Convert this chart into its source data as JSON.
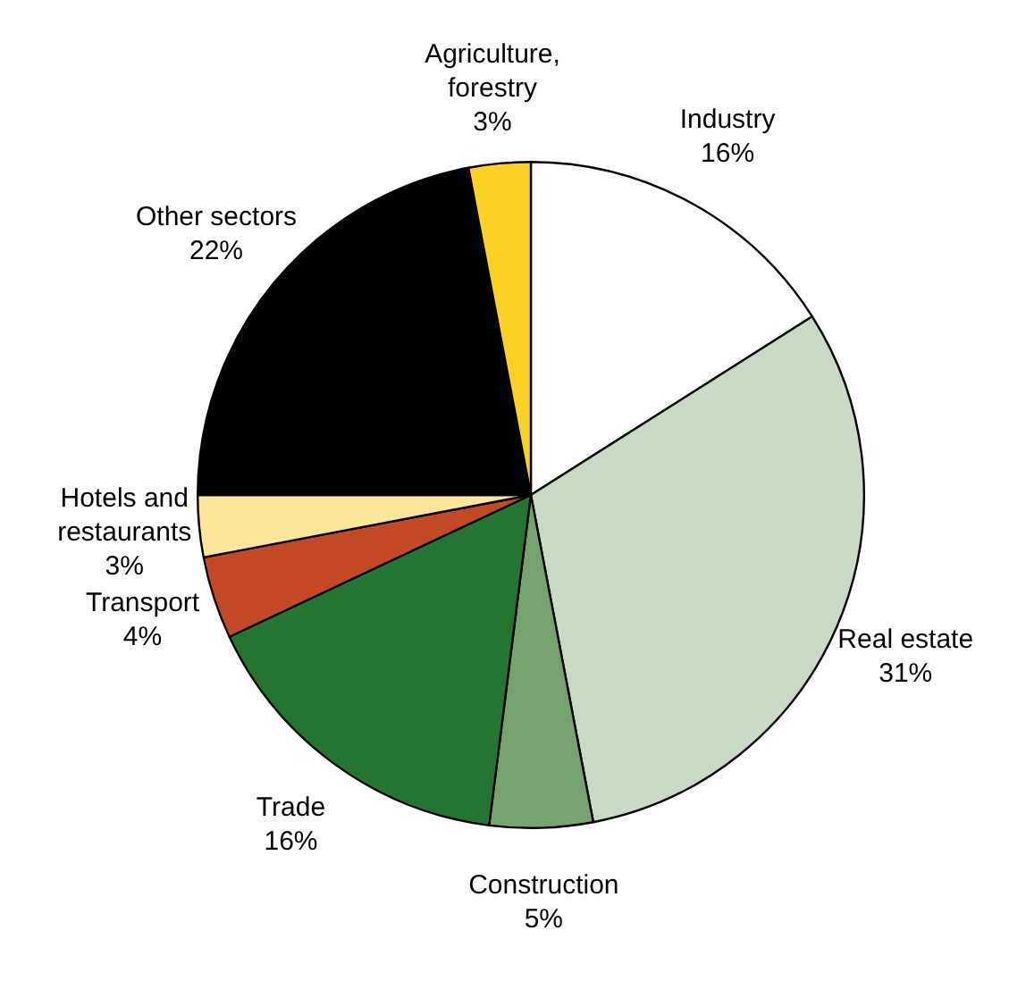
{
  "chart_data": {
    "type": "pie",
    "categories": [
      "Industry",
      "Real estate",
      "Construction",
      "Trade",
      "Transport",
      "Hotels and restaurants",
      "Other sectors",
      "Agriculture, forestry"
    ],
    "values": [
      16,
      31,
      5,
      16,
      4,
      3,
      22,
      3
    ],
    "value_labels": [
      "16%",
      "31%",
      "5%",
      "16%",
      "4%",
      "3%",
      "22%",
      "3%"
    ],
    "colors": [
      "#ffffff",
      "#c9dbc5",
      "#76a46f",
      "#237530",
      "#c44a26",
      "#fde59a",
      "#000000",
      "#fdd223"
    ],
    "legend": false
  }
}
